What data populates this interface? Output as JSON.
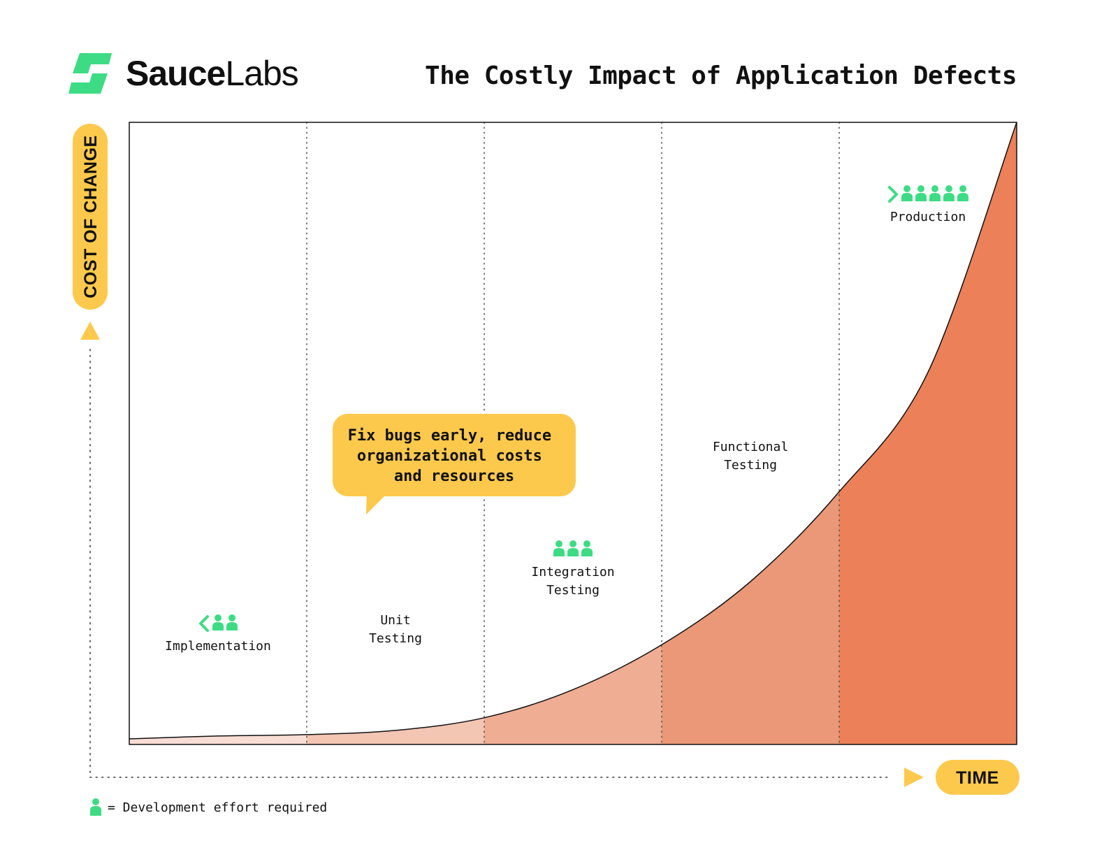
{
  "brand": {
    "name_bold": "Sauce",
    "name_light": "Labs",
    "colors": {
      "logo": "#3ddc84"
    }
  },
  "title": "The Costly Impact of Application Defects",
  "axes": {
    "y_label": "COST OF CHANGE",
    "x_label": "TIME"
  },
  "callout": {
    "lines": [
      "Fix bugs early, reduce",
      "organizational costs",
      "and resources"
    ]
  },
  "legend": {
    "icon": "person-icon",
    "text": "= Development effort required"
  },
  "colors": {
    "badge": "#fdc94c",
    "people": "#3ddc84",
    "area_shades": [
      "#f8ddd4",
      "#f3c5b3",
      "#efad94",
      "#ea9877",
      "#ec8058"
    ]
  },
  "chart_data": {
    "type": "area",
    "title": "The Costly Impact of Application Defects",
    "xlabel": "TIME",
    "ylabel": "COST OF CHANGE",
    "categories": [
      "Implementation",
      "Unit Testing",
      "Integration Testing",
      "Functional Testing",
      "Production"
    ],
    "stages": [
      {
        "label_lines": [
          "Implementation"
        ],
        "effort": 2,
        "prefix": "<"
      },
      {
        "label_lines": [
          "Unit",
          "Testing"
        ],
        "effort": 0,
        "prefix": ""
      },
      {
        "label_lines": [
          "Integration",
          "Testing"
        ],
        "effort": 3,
        "prefix": ""
      },
      {
        "label_lines": [
          "Functional",
          "Testing"
        ],
        "effort": 0,
        "prefix": ""
      },
      {
        "label_lines": [
          "Production"
        ],
        "effort": 5,
        "prefix": ">"
      }
    ],
    "curve": {
      "x": [
        0,
        0.5,
        1,
        1.5,
        2,
        2.5,
        3,
        3.5,
        4,
        4.5,
        5
      ],
      "y": [
        0.04,
        0.06,
        0.07,
        0.1,
        0.19,
        0.39,
        0.71,
        1.16,
        1.8,
        2.65,
        4.43
      ]
    },
    "xlim": [
      0,
      5
    ],
    "ylim": [
      0,
      4.43
    ],
    "grid": "vertical-dotted"
  }
}
